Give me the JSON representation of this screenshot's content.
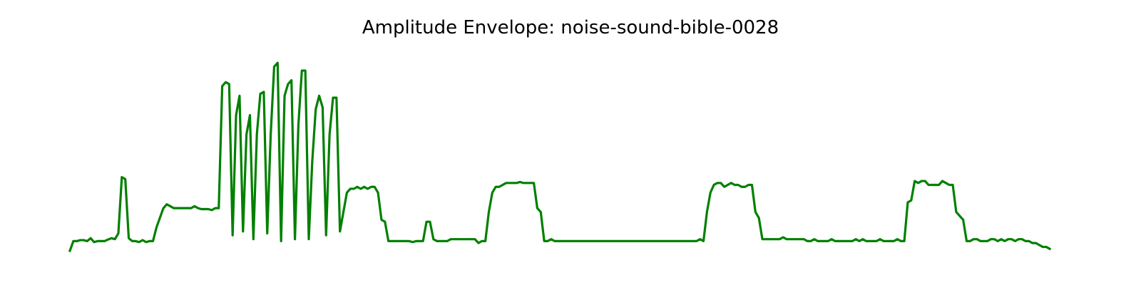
{
  "chart_data": {
    "type": "line",
    "title": "Amplitude Envelope: noise-sound-bible-0028",
    "xlabel": "",
    "ylabel": "",
    "axes_visible": false,
    "grid": false,
    "ylim": [
      0,
      1
    ],
    "series": [
      {
        "color": "#008000",
        "values": [
          0.0,
          0.05,
          0.05,
          0.055,
          0.055,
          0.05,
          0.065,
          0.045,
          0.05,
          0.05,
          0.05,
          0.058,
          0.065,
          0.06,
          0.09,
          0.38,
          0.37,
          0.065,
          0.05,
          0.05,
          0.045,
          0.055,
          0.045,
          0.05,
          0.05,
          0.12,
          0.17,
          0.22,
          0.24,
          0.23,
          0.22,
          0.22,
          0.22,
          0.22,
          0.22,
          0.22,
          0.23,
          0.22,
          0.215,
          0.215,
          0.215,
          0.21,
          0.22,
          0.22,
          0.85,
          0.87,
          0.86,
          0.08,
          0.7,
          0.8,
          0.1,
          0.6,
          0.7,
          0.06,
          0.6,
          0.81,
          0.82,
          0.09,
          0.6,
          0.95,
          0.97,
          0.05,
          0.8,
          0.86,
          0.88,
          0.06,
          0.65,
          0.93,
          0.93,
          0.06,
          0.46,
          0.73,
          0.8,
          0.74,
          0.08,
          0.6,
          0.79,
          0.79,
          0.1,
          0.2,
          0.3,
          0.32,
          0.32,
          0.33,
          0.32,
          0.33,
          0.32,
          0.33,
          0.33,
          0.3,
          0.16,
          0.15,
          0.05,
          0.05,
          0.05,
          0.05,
          0.05,
          0.05,
          0.05,
          0.045,
          0.05,
          0.05,
          0.05,
          0.15,
          0.15,
          0.06,
          0.05,
          0.05,
          0.05,
          0.05,
          0.06,
          0.06,
          0.06,
          0.06,
          0.06,
          0.06,
          0.06,
          0.06,
          0.04,
          0.05,
          0.05,
          0.2,
          0.3,
          0.33,
          0.33,
          0.34,
          0.35,
          0.35,
          0.35,
          0.35,
          0.355,
          0.35,
          0.35,
          0.35,
          0.35,
          0.22,
          0.2,
          0.05,
          0.05,
          0.06,
          0.05,
          0.05,
          0.05,
          0.05,
          0.05,
          0.05,
          0.05,
          0.05,
          0.05,
          0.05,
          0.05,
          0.05,
          0.05,
          0.05,
          0.05,
          0.05,
          0.05,
          0.05,
          0.05,
          0.05,
          0.05,
          0.05,
          0.05,
          0.05,
          0.05,
          0.05,
          0.05,
          0.05,
          0.05,
          0.05,
          0.05,
          0.05,
          0.05,
          0.05,
          0.05,
          0.05,
          0.05,
          0.05,
          0.05,
          0.05,
          0.05,
          0.05,
          0.06,
          0.05,
          0.2,
          0.3,
          0.34,
          0.35,
          0.35,
          0.33,
          0.34,
          0.35,
          0.34,
          0.34,
          0.33,
          0.33,
          0.34,
          0.34,
          0.2,
          0.17,
          0.06,
          0.06,
          0.06,
          0.06,
          0.06,
          0.06,
          0.07,
          0.06,
          0.06,
          0.06,
          0.06,
          0.06,
          0.06,
          0.05,
          0.05,
          0.06,
          0.05,
          0.05,
          0.05,
          0.05,
          0.06,
          0.05,
          0.05,
          0.05,
          0.05,
          0.05,
          0.05,
          0.06,
          0.05,
          0.06,
          0.05,
          0.05,
          0.05,
          0.05,
          0.06,
          0.05,
          0.05,
          0.05,
          0.05,
          0.06,
          0.05,
          0.05,
          0.25,
          0.26,
          0.36,
          0.35,
          0.36,
          0.36,
          0.34,
          0.34,
          0.34,
          0.34,
          0.36,
          0.35,
          0.34,
          0.34,
          0.2,
          0.18,
          0.16,
          0.05,
          0.05,
          0.06,
          0.06,
          0.05,
          0.05,
          0.05,
          0.06,
          0.06,
          0.05,
          0.06,
          0.05,
          0.06,
          0.06,
          0.05,
          0.06,
          0.06,
          0.05,
          0.05,
          0.04,
          0.04,
          0.03,
          0.02,
          0.02,
          0.01
        ]
      }
    ]
  }
}
